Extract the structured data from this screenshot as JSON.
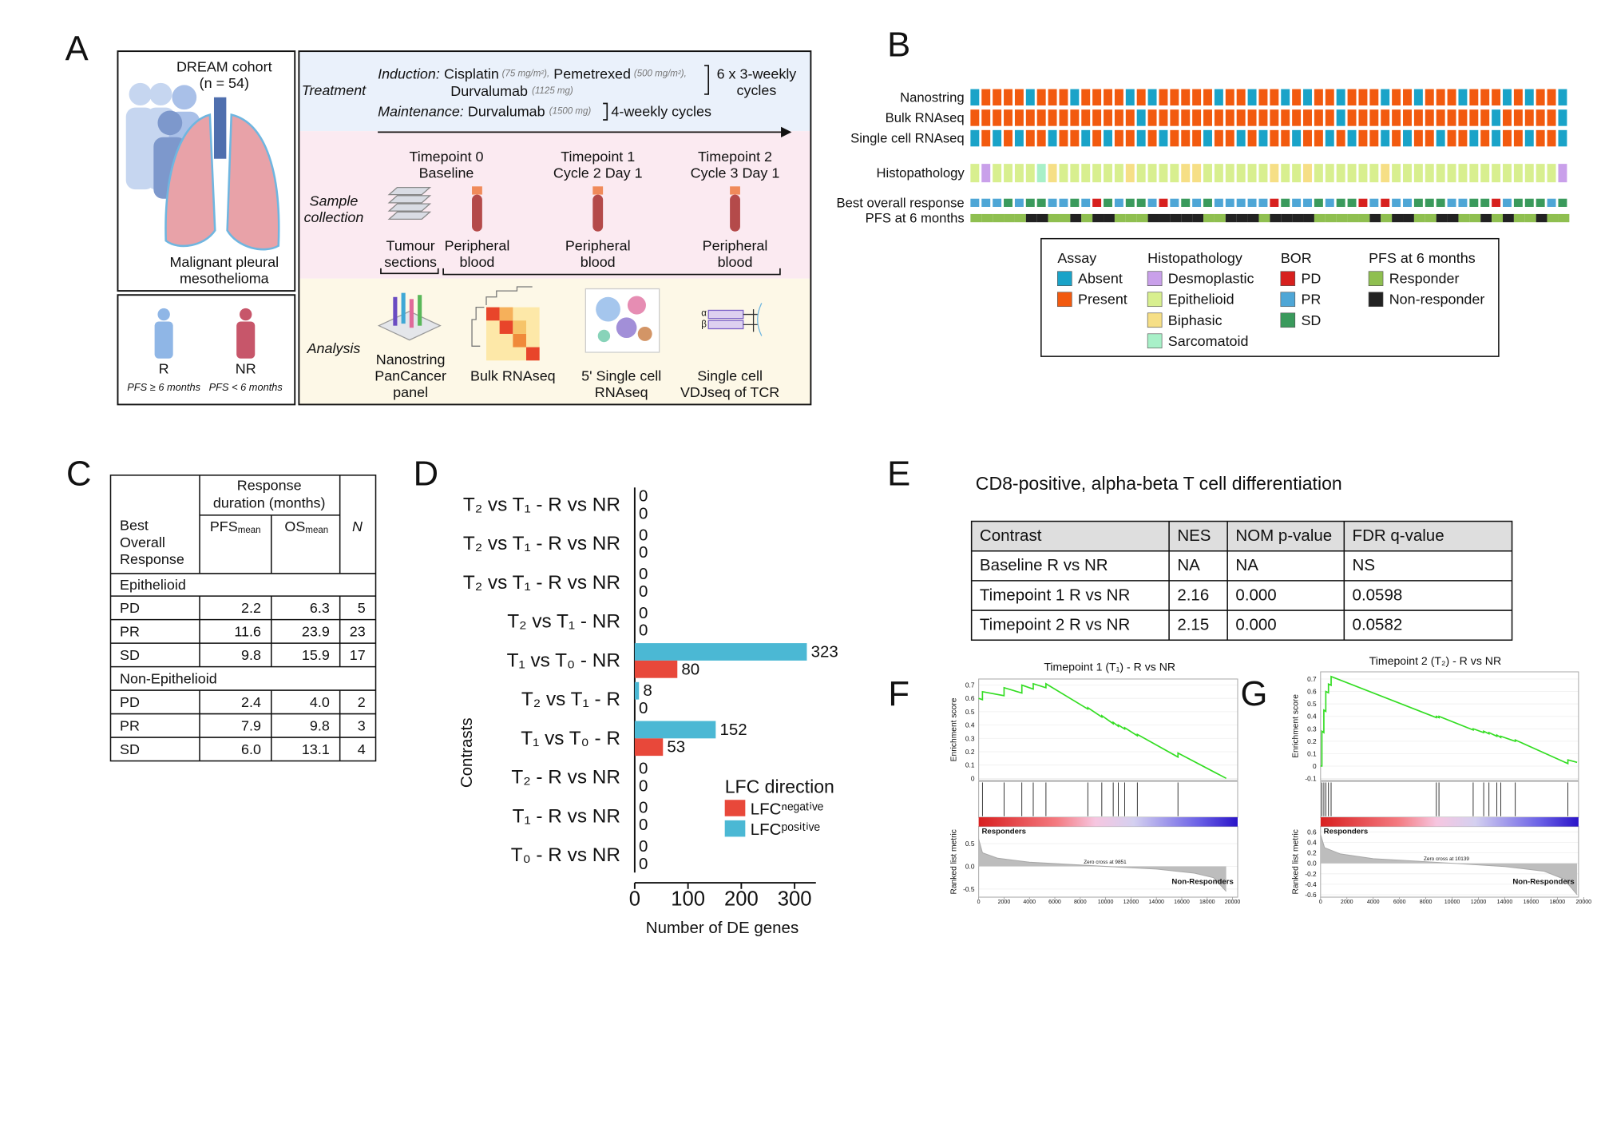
{
  "panel_labels": [
    "A",
    "B",
    "C",
    "D",
    "E",
    "F",
    "G"
  ],
  "panel_a": {
    "cohort": "DREAM cohort",
    "cohort_n": "(n = 54)",
    "disease": [
      "Malignant pleural",
      "mesothelioma"
    ],
    "groups": [
      {
        "label": "R",
        "criterion": "PFS ≥ 6 months"
      },
      {
        "label": "NR",
        "criterion": "PFS < 6 months"
      }
    ],
    "treatment": {
      "heading": "Treatment",
      "induction_label": "Induction:",
      "induction_drugs": [
        {
          "name": "Cisplatin",
          "dose": "(75 mg/m²),"
        },
        {
          "name": "Pemetrexed",
          "dose": "(500 mg/m²),"
        },
        {
          "name": "Durvalumab",
          "dose": "(1125 mg)"
        }
      ],
      "induction_cycles": [
        "6 x 3-weekly",
        "cycles"
      ],
      "maintenance_label": "Maintenance:",
      "maintenance_drug": {
        "name": "Durvalumab",
        "dose": "(1500 mg)"
      },
      "maintenance_cycles": "4-weekly cycles"
    },
    "sample_collection": {
      "heading": [
        "Sample",
        "collection"
      ],
      "timepoints": [
        [
          "Timepoint 0",
          "Baseline"
        ],
        [
          "Timepoint 1",
          "Cycle 2 Day 1"
        ],
        [
          "Timepoint 2",
          "Cycle 3 Day 1"
        ]
      ],
      "samples": [
        [
          "Tumour",
          "sections"
        ],
        [
          "Peripheral",
          "blood"
        ],
        [
          "Peripheral",
          "blood"
        ],
        [
          "Peripheral",
          "blood"
        ]
      ]
    },
    "analysis": {
      "heading": "Analysis",
      "methods": [
        [
          "Nanostring",
          "PanCancer",
          "panel"
        ],
        [
          "Bulk RNAseq"
        ],
        [
          "5' Single cell",
          "RNAseq"
        ],
        [
          "Single cell",
          "VDJseq of TCR"
        ]
      ]
    }
  },
  "panel_b": {
    "rows": [
      {
        "name": "Nanostring",
        "values": [
          "Absent",
          "Present",
          "Present",
          "Present",
          "Present",
          "Absent",
          "Present",
          "Present",
          "Present",
          "Absent",
          "Present",
          "Present",
          "Present",
          "Present",
          "Absent",
          "Present",
          "Absent",
          "Present",
          "Present",
          "Present",
          "Present",
          "Present",
          "Absent",
          "Present",
          "Present",
          "Absent",
          "Present",
          "Present",
          "Absent",
          "Present",
          "Absent",
          "Present",
          "Present",
          "Absent",
          "Present",
          "Present",
          "Present",
          "Absent",
          "Present",
          "Present",
          "Absent",
          "Present",
          "Present",
          "Present",
          "Absent",
          "Present",
          "Present",
          "Present",
          "Absent",
          "Present",
          "Absent",
          "Present",
          "Present",
          "Absent"
        ]
      },
      {
        "name": "Bulk RNAseq",
        "values": [
          "Present",
          "Present",
          "Present",
          "Present",
          "Present",
          "Present",
          "Present",
          "Present",
          "Present",
          "Present",
          "Present",
          "Present",
          "Present",
          "Present",
          "Present",
          "Absent",
          "Present",
          "Present",
          "Present",
          "Present",
          "Present",
          "Present",
          "Present",
          "Present",
          "Present",
          "Present",
          "Present",
          "Present",
          "Present",
          "Present",
          "Present",
          "Present",
          "Present",
          "Absent",
          "Present",
          "Present",
          "Present",
          "Present",
          "Present",
          "Present",
          "Present",
          "Present",
          "Present",
          "Present",
          "Present",
          "Present",
          "Present",
          "Absent",
          "Present",
          "Present",
          "Present",
          "Present",
          "Present",
          "Absent"
        ]
      },
      {
        "name": "Single cell RNAseq",
        "values": [
          "Absent",
          "Present",
          "Absent",
          "Present",
          "Absent",
          "Present",
          "Present",
          "Absent",
          "Present",
          "Present",
          "Absent",
          "Present",
          "Absent",
          "Present",
          "Present",
          "Absent",
          "Present",
          "Absent",
          "Present",
          "Present",
          "Present",
          "Absent",
          "Present",
          "Present",
          "Absent",
          "Present",
          "Absent",
          "Present",
          "Present",
          "Absent",
          "Present",
          "Present",
          "Absent",
          "Present",
          "Absent",
          "Present",
          "Present",
          "Absent",
          "Present",
          "Absent",
          "Present",
          "Present",
          "Absent",
          "Present",
          "Present",
          "Absent",
          "Present",
          "Absent",
          "Present",
          "Present",
          "Absent",
          "Present",
          "Present",
          "Absent"
        ]
      },
      {
        "name": "Histopathology",
        "values": [
          "Epithelioid",
          "Desmoplastic",
          "Epithelioid",
          "Epithelioid",
          "Epithelioid",
          "Epithelioid",
          "Sarcomatoid",
          "Biphasic",
          "Epithelioid",
          "Epithelioid",
          "Epithelioid",
          "Epithelioid",
          "Epithelioid",
          "Epithelioid",
          "Biphasic",
          "Epithelioid",
          "Epithelioid",
          "Epithelioid",
          "Epithelioid",
          "Biphasic",
          "Biphasic",
          "Epithelioid",
          "Epithelioid",
          "Epithelioid",
          "Epithelioid",
          "Epithelioid",
          "Epithelioid",
          "Biphasic",
          "Epithelioid",
          "Epithelioid",
          "Biphasic",
          "Epithelioid",
          "Epithelioid",
          "Epithelioid",
          "Epithelioid",
          "Epithelioid",
          "Epithelioid",
          "Biphasic",
          "Epithelioid",
          "Epithelioid",
          "Epithelioid",
          "Epithelioid",
          "Epithelioid",
          "Epithelioid",
          "Epithelioid",
          "Epithelioid",
          "Epithelioid",
          "Epithelioid",
          "Epithelioid",
          "Epithelioid",
          "Epithelioid",
          "Epithelioid",
          "Epithelioid",
          "Desmoplastic"
        ]
      },
      {
        "name": "Best overall response",
        "values": [
          "PR",
          "PR",
          "PR",
          "SD",
          "PR",
          "SD",
          "SD",
          "PR",
          "PR",
          "SD",
          "PR",
          "PD",
          "SD",
          "PR",
          "SD",
          "SD",
          "PR",
          "PD",
          "PR",
          "SD",
          "PR",
          "SD",
          "PR",
          "PR",
          "PR",
          "PR",
          "PR",
          "PD",
          "SD",
          "PR",
          "PR",
          "SD",
          "PR",
          "SD",
          "SD",
          "PD",
          "PR",
          "PD",
          "PR",
          "PR",
          "SD",
          "SD",
          "SD",
          "PR",
          "PR",
          "SD",
          "SD",
          "PD",
          "PR",
          "SD",
          "SD",
          "SD",
          "PR",
          "SD"
        ]
      },
      {
        "name": "PFS at 6 months",
        "values": [
          "Responder",
          "Responder",
          "Responder",
          "Responder",
          "Responder",
          "Non-responder",
          "Non-responder",
          "Responder",
          "Responder",
          "Non-responder",
          "Responder",
          "Non-responder",
          "Non-responder",
          "Responder",
          "Responder",
          "Responder",
          "Non-responder",
          "Non-responder",
          "Non-responder",
          "Non-responder",
          "Non-responder",
          "Responder",
          "Responder",
          "Non-responder",
          "Non-responder",
          "Non-responder",
          "Responder",
          "Non-responder",
          "Non-responder",
          "Non-responder",
          "Non-responder",
          "Responder",
          "Responder",
          "Responder",
          "Responder",
          "Responder",
          "Non-responder",
          "Responder",
          "Non-responder",
          "Non-responder",
          "Responder",
          "Responder",
          "Non-responder",
          "Non-responder",
          "Responder",
          "Responder",
          "Non-responder",
          "Responder",
          "Non-responder",
          "Responder",
          "Responder",
          "Non-responder",
          "Responder",
          "Responder"
        ]
      }
    ],
    "legend": [
      {
        "title": "Assay",
        "items": [
          {
            "name": "Absent",
            "color": "#1aa3c8"
          },
          {
            "name": "Present",
            "color": "#f25a0f"
          }
        ]
      },
      {
        "title": "Histopathology",
        "items": [
          {
            "name": "Desmoplastic",
            "color": "#c9a0ea"
          },
          {
            "name": "Epithelioid",
            "color": "#d8ef8f"
          },
          {
            "name": "Biphasic",
            "color": "#f6df86"
          },
          {
            "name": "Sarcomatoid",
            "color": "#a8f0c8"
          }
        ]
      },
      {
        "title": "BOR",
        "items": [
          {
            "name": "PD",
            "color": "#d7201e"
          },
          {
            "name": "PR",
            "color": "#4ea6d6"
          },
          {
            "name": "SD",
            "color": "#3a9a5c"
          }
        ]
      },
      {
        "title": "PFS at 6 months",
        "items": [
          {
            "name": "Responder",
            "color": "#8fbf50"
          },
          {
            "name": "Non-responder",
            "color": "#222222"
          }
        ]
      }
    ]
  },
  "panel_c": {
    "header": {
      "duration": [
        "Response",
        "duration (months)"
      ],
      "bor": [
        "Best",
        "Overall",
        "Response"
      ],
      "pfs": {
        "main": "PFS",
        "sub": "mean"
      },
      "os": {
        "main": "OS",
        "sub": "mean"
      },
      "n": "N"
    },
    "groups": [
      {
        "name": "Epithelioid",
        "rows": [
          [
            "PD",
            "2.2",
            "6.3",
            "5"
          ],
          [
            "PR",
            "11.6",
            "23.9",
            "23"
          ],
          [
            "SD",
            "9.8",
            "15.9",
            "17"
          ]
        ]
      },
      {
        "name": "Non-Epithelioid",
        "rows": [
          [
            "PD",
            "2.4",
            "4.0",
            "2"
          ],
          [
            "PR",
            "7.9",
            "9.8",
            "3"
          ],
          [
            "SD",
            "6.0",
            "13.1",
            "4"
          ]
        ]
      }
    ]
  },
  "panel_e": {
    "title": "CD8-positive, alpha-beta T cell differentiation",
    "header": [
      "Contrast",
      "NES",
      "NOM p-value",
      "FDR q-value"
    ],
    "rows": [
      [
        "Baseline R vs NR",
        "NA",
        "NA",
        "NS"
      ],
      [
        "Timepoint 1 R vs NR",
        "2.16",
        "0.000",
        "0.0598"
      ],
      [
        "Timepoint 2 R vs NR",
        "2.15",
        "0.000",
        "0.0582"
      ]
    ]
  },
  "chart_data": [
    {
      "type": "bar",
      "orientation": "horizontal",
      "categories": [
        "T₂ vs T₁ - R vs NR",
        "T₂ vs T₁ - R vs NR",
        "T₂ vs T₁ - R vs NR",
        "T₂ vs T₁ - NR",
        "T₁ vs T₀ - NR",
        "T₂ vs T₁ - R",
        "T₁ vs T₀ - R",
        "T₂ - R vs NR",
        "T₁ - R vs NR",
        "T₀ - R vs NR"
      ],
      "series": [
        {
          "name": "LFCᵖᵒˢⁱᵗⁱᵛᵉ",
          "color": "#4bb8d4",
          "values": [
            0,
            0,
            0,
            0,
            323,
            8,
            152,
            0,
            0,
            0
          ]
        },
        {
          "name": "LFCⁿᵉᵍᵃᵗⁱᵛᵉ",
          "color": "#e8483a",
          "values": [
            0,
            0,
            0,
            0,
            80,
            0,
            53,
            0,
            0,
            0
          ]
        }
      ],
      "xlim": [
        0,
        340
      ],
      "xticks": [
        0,
        100,
        200,
        300
      ],
      "xlabel": "Number of DE genes",
      "ylabel": "Contrasts",
      "legend_title": "LFC direction",
      "legend": "lower right"
    },
    {
      "type": "enrichment",
      "title": "Timepoint 1 (T₁) -  R vs NR",
      "es_label": "Enrichment score",
      "metric_label": "Ranked list metric",
      "color": "#33dd22",
      "xlim": [
        0,
        20000
      ],
      "xticks": [
        0,
        2000,
        4000,
        6000,
        8000,
        10000,
        12000,
        14000,
        16000,
        18000,
        20000
      ],
      "es": {
        "x": [
          0,
          300,
          300,
          2000,
          2000,
          3400,
          3400,
          4300,
          4300,
          5300,
          5300,
          8600,
          8600,
          9700,
          9700,
          10600,
          10600,
          11000,
          11000,
          11500,
          11500,
          12500,
          12500,
          15700,
          15700,
          19500
        ],
        "y": [
          0.6,
          0.59,
          0.65,
          0.62,
          0.68,
          0.64,
          0.7,
          0.67,
          0.71,
          0.68,
          0.71,
          0.52,
          0.53,
          0.46,
          0.47,
          0.41,
          0.42,
          0.39,
          0.4,
          0.37,
          0.38,
          0.32,
          0.33,
          0.16,
          0.19,
          0
        ]
      },
      "es_ylim": [
        -0.015,
        0.745
      ],
      "es_yticks": [
        0,
        0.1,
        0.2,
        0.3,
        0.4,
        0.5,
        0.6,
        0.7
      ],
      "hits": [
        300,
        2000,
        3400,
        4300,
        5300,
        8600,
        9700,
        10600,
        11000,
        11500,
        12500,
        15700
      ],
      "metric": {
        "x": [
          0,
          300,
          1500,
          4000,
          9851,
          14000,
          17000,
          18500,
          19500
        ],
        "y": [
          0.6,
          0.3,
          0.18,
          0.09,
          0,
          -0.06,
          -0.15,
          -0.25,
          -0.55
        ]
      },
      "metric_ylim": [
        -0.68,
        0.88
      ],
      "metric_yticks": [
        0.5,
        {
          "value": 0,
          "label": "0.0"
        },
        -0.5
      ],
      "zero_cross_label": "Zero cross at 9851",
      "positive_label": "Responders",
      "negative_label": "Non-Responders"
    },
    {
      "type": "enrichment",
      "title": "Timepoint 2 (T₂) -  R vs NR",
      "es_label": "Enrichment score",
      "metric_label": "Ranked list metric",
      "color": "#33dd22",
      "xlim": [
        0,
        20000
      ],
      "xticks": [
        0,
        2000,
        4000,
        6000,
        8000,
        10000,
        12000,
        14000,
        16000,
        18000,
        20000
      ],
      "es": {
        "x": [
          0,
          100,
          100,
          250,
          250,
          400,
          400,
          600,
          600,
          800,
          800,
          8800,
          8800,
          9000,
          9000,
          11600,
          11600,
          12400,
          12400,
          12800,
          12800,
          13400,
          13400,
          13700,
          13700,
          14800,
          14800,
          18800,
          18800,
          19500
        ],
        "y": [
          0,
          0,
          0.28,
          0.27,
          0.45,
          0.44,
          0.6,
          0.59,
          0.66,
          0.65,
          0.72,
          0.39,
          0.4,
          0.39,
          0.4,
          0.29,
          0.3,
          0.27,
          0.28,
          0.26,
          0.27,
          0.24,
          0.25,
          0.23,
          0.24,
          0.2,
          0.21,
          0.02,
          0.05,
          0.03
        ]
      },
      "es_ylim": [
        -0.115,
        0.758
      ],
      "es_yticks": [
        -0.1,
        0,
        0.1,
        0.2,
        0.3,
        0.4,
        0.5,
        0.6,
        0.7
      ],
      "hits": [
        100,
        250,
        400,
        600,
        800,
        8800,
        9000,
        11600,
        12400,
        12800,
        13400,
        13700,
        14800,
        18800
      ],
      "metric": {
        "x": [
          0,
          300,
          1500,
          4000,
          10139,
          14000,
          17000,
          18500,
          19500
        ],
        "y": [
          0.55,
          0.3,
          0.18,
          0.09,
          0,
          -0.06,
          -0.15,
          -0.3,
          -0.6
        ]
      },
      "metric_ylim": [
        -0.647,
        0.706
      ],
      "metric_yticks": [
        0.6,
        0.4,
        0.2,
        {
          "value": 0,
          "label": "0.0"
        },
        -0.2,
        -0.4,
        -0.6
      ],
      "zero_cross_label": "Zero cross at 10139",
      "positive_label": "Responders",
      "negative_label": "Non-Responders"
    }
  ]
}
